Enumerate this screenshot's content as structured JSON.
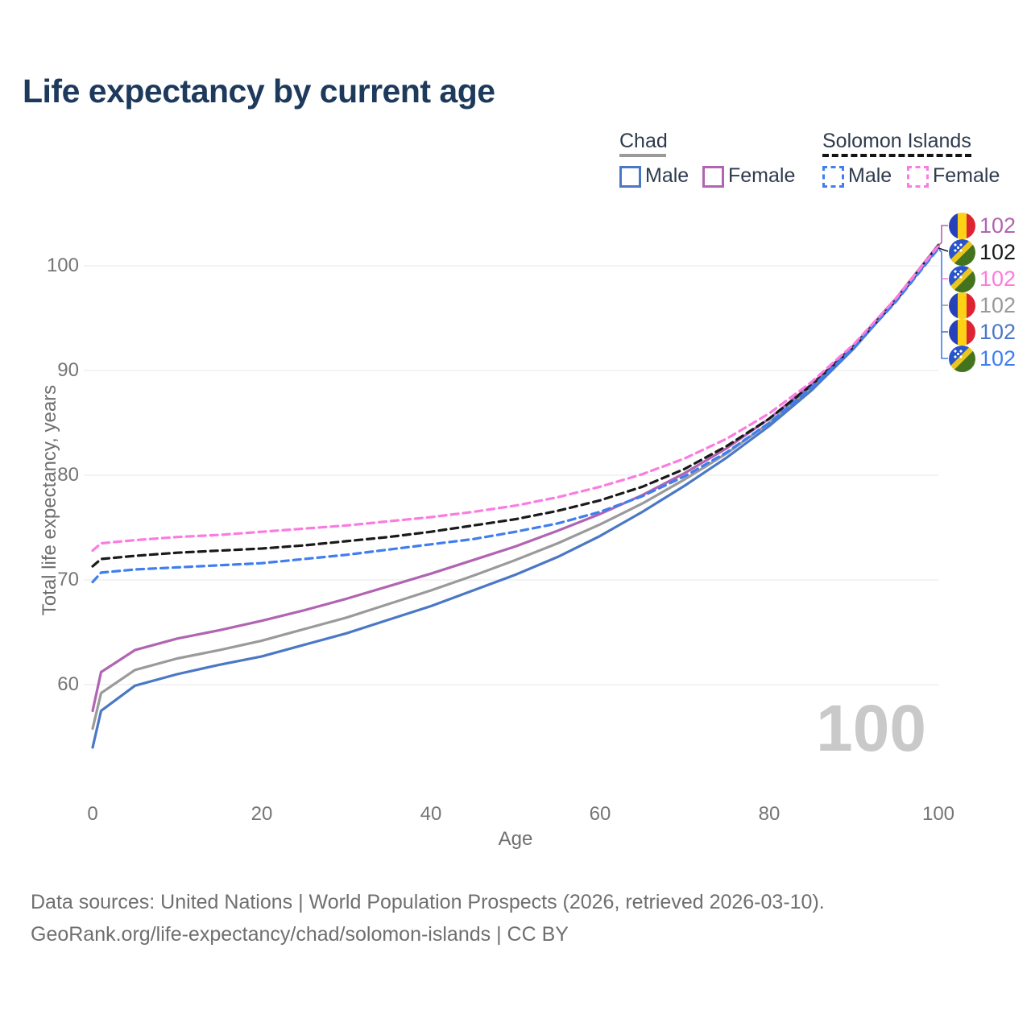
{
  "title": "Life expectancy by current age",
  "legend": {
    "groups": [
      {
        "label": "Chad",
        "line_style": "solid",
        "underline_color": "#9a9a9a",
        "items": [
          {
            "label": "Male",
            "color": "#4a78c5"
          },
          {
            "label": "Female",
            "color": "#b164b1"
          }
        ]
      },
      {
        "label": "Solomon Islands",
        "line_style": "dashed",
        "underline_color": "#141414",
        "items": [
          {
            "label": "Male",
            "color": "#3f7ef0"
          },
          {
            "label": "Female",
            "color": "#fb7ce0"
          }
        ]
      }
    ]
  },
  "axes": {
    "y_title": "Total life expectancy, years",
    "x_title": "Age",
    "y_ticks": [
      60,
      70,
      80,
      90,
      100
    ],
    "x_ticks": [
      0,
      20,
      40,
      60,
      80,
      100
    ]
  },
  "watermark": "100",
  "end_labels": [
    {
      "value": "102",
      "flag": "chad-flag-icon",
      "color": "#b164b1",
      "series": "Chad Female"
    },
    {
      "value": "102",
      "flag": "solomon-islands-flag-icon",
      "color": "#1a1a1a",
      "series": "Solomon Islands Both sexes"
    },
    {
      "value": "102",
      "flag": "solomon-islands-flag-icon",
      "color": "#fb7ce0",
      "series": "Solomon Islands Female"
    },
    {
      "value": "102",
      "flag": "chad-flag-icon",
      "color": "#9a9a9a",
      "series": "Chad Both sexes"
    },
    {
      "value": "102",
      "flag": "chad-flag-icon",
      "color": "#4a78c5",
      "series": "Chad Male"
    },
    {
      "value": "102",
      "flag": "solomon-islands-flag-icon",
      "color": "#3f7ef0",
      "series": "Solomon Islands Male"
    }
  ],
  "footer": {
    "line1": "Data sources: United Nations | World Population Prospects (2026, retrieved 2026-03-10).",
    "line2": "GeoRank.org/life-expectancy/chad/solomon-islands | CC BY"
  },
  "chart_data": {
    "type": "line",
    "title": "Life expectancy by current age",
    "xlabel": "Age",
    "ylabel": "Total life expectancy, years",
    "xlim": [
      0,
      100
    ],
    "ylim": [
      53,
      103
    ],
    "grid": "horizontal",
    "legend_position": "top-right",
    "x": [
      0,
      1,
      5,
      10,
      15,
      20,
      25,
      30,
      35,
      40,
      45,
      50,
      55,
      60,
      65,
      70,
      75,
      80,
      85,
      90,
      95,
      100
    ],
    "series": [
      {
        "name": "Chad Both sexes",
        "country": "Chad",
        "sex": "Both",
        "style": "solid",
        "color": "#9a9a9a",
        "values": [
          55.8,
          59.2,
          61.4,
          62.5,
          63.3,
          64.2,
          65.3,
          66.4,
          67.7,
          69.0,
          70.4,
          71.9,
          73.5,
          75.3,
          77.3,
          79.6,
          82.1,
          85.0,
          88.4,
          92.2,
          96.8,
          101.8
        ]
      },
      {
        "name": "Chad Female",
        "country": "Chad",
        "sex": "Female",
        "style": "solid",
        "color": "#b164b1",
        "values": [
          57.5,
          61.2,
          63.3,
          64.4,
          65.2,
          66.1,
          67.1,
          68.2,
          69.4,
          70.6,
          71.9,
          73.2,
          74.7,
          76.3,
          78.1,
          80.2,
          82.6,
          85.4,
          88.7,
          92.4,
          96.9,
          102.0
        ]
      },
      {
        "name": "Chad Male",
        "country": "Chad",
        "sex": "Male",
        "style": "solid",
        "color": "#4a78c5",
        "values": [
          54.0,
          57.5,
          59.9,
          61.0,
          61.9,
          62.7,
          63.8,
          64.9,
          66.2,
          67.5,
          69.0,
          70.5,
          72.2,
          74.2,
          76.5,
          79.0,
          81.7,
          84.7,
          88.1,
          92.1,
          96.7,
          101.75
        ]
      },
      {
        "name": "Solomon Islands Both sexes",
        "country": "Solomon Islands",
        "sex": "Both",
        "style": "dashed",
        "color": "#1a1a1a",
        "values": [
          71.3,
          72.0,
          72.3,
          72.6,
          72.8,
          73.0,
          73.3,
          73.7,
          74.1,
          74.6,
          75.2,
          75.8,
          76.6,
          77.6,
          78.9,
          80.6,
          82.8,
          85.4,
          88.6,
          92.3,
          96.7,
          101.95
        ]
      },
      {
        "name": "Solomon Islands Male",
        "country": "Solomon Islands",
        "sex": "Male",
        "style": "dashed",
        "color": "#3f7ef0",
        "values": [
          69.8,
          70.7,
          71.0,
          71.2,
          71.4,
          71.6,
          72.0,
          72.4,
          72.9,
          73.4,
          73.9,
          74.6,
          75.4,
          76.5,
          78.0,
          79.9,
          82.2,
          85.0,
          88.4,
          92.2,
          96.6,
          101.65
        ]
      },
      {
        "name": "Solomon Islands Female",
        "country": "Solomon Islands",
        "sex": "Female",
        "style": "dashed",
        "color": "#fb7ce0",
        "values": [
          72.8,
          73.5,
          73.8,
          74.1,
          74.3,
          74.6,
          74.9,
          75.2,
          75.6,
          76.0,
          76.5,
          77.1,
          77.9,
          78.9,
          80.1,
          81.6,
          83.5,
          85.9,
          88.9,
          92.5,
          96.9,
          101.9
        ]
      }
    ]
  }
}
